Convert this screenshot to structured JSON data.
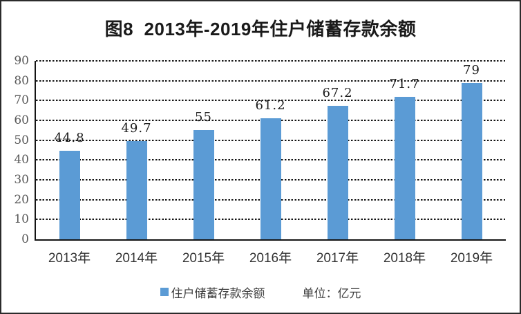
{
  "title": "图8  2013年-2019年住户储蓄存款余额",
  "legend": {
    "series_label": "住户储蓄存款余额",
    "unit_label": "单位：亿元"
  },
  "colors": {
    "bar": "#5B9BD5",
    "grid": "#141414",
    "axis": "#141414",
    "title_text": "#1a1a1a",
    "ytick_text": "#595959",
    "xtick_text": "#333333"
  },
  "chart_data": {
    "type": "bar",
    "title": "图8  2013年-2019年住户储蓄存款余额",
    "categories": [
      "2013年",
      "2014年",
      "2015年",
      "2016年",
      "2017年",
      "2018年",
      "2019年"
    ],
    "values": [
      44.8,
      49.7,
      55,
      61.2,
      67.2,
      71.7,
      79
    ],
    "value_labels": [
      "44.8",
      "49.7",
      "55",
      "61.2",
      "67.2",
      "71.7",
      "79"
    ],
    "series_name": "住户储蓄存款余额",
    "unit": "单位：亿元",
    "xlabel": "",
    "ylabel": "",
    "ylim": [
      0,
      90
    ],
    "ytick_step": 10,
    "yticks": [
      0,
      10,
      20,
      30,
      40,
      50,
      60,
      70,
      80,
      90
    ],
    "grid": "horizontal-dotted",
    "legend_position": "bottom"
  }
}
